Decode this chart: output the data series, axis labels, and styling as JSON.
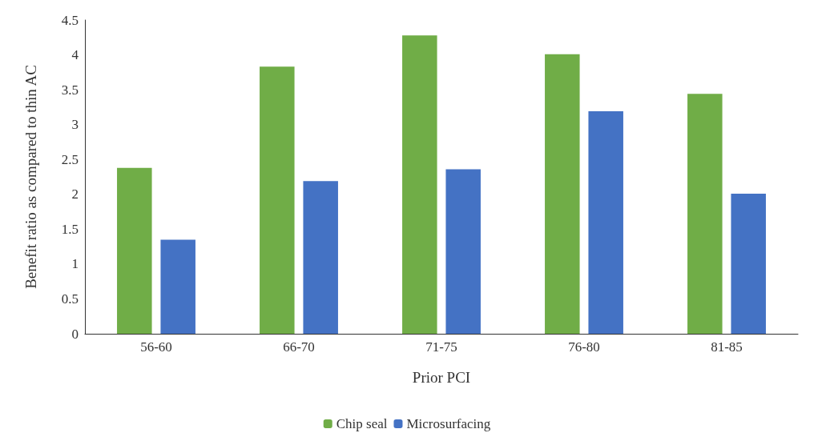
{
  "chart_data": {
    "type": "bar",
    "xlabel": "Prior PCI",
    "ylabel": "Benefit ratio as compared to thin AC",
    "categories": [
      "56-60",
      "66-70",
      "71-75",
      "76-80",
      "81-85"
    ],
    "series": [
      {
        "name": "Chip seal",
        "color": "#70ad47",
        "values": [
          2.38,
          3.83,
          4.28,
          4.01,
          3.44
        ]
      },
      {
        "name": "Microsurfacing",
        "color": "#4472c4",
        "values": [
          1.35,
          2.19,
          2.36,
          3.19,
          2.01
        ]
      }
    ],
    "ylim": [
      0,
      4.5
    ],
    "yticks": [
      0,
      0.5,
      1,
      1.5,
      2,
      2.5,
      3,
      3.5,
      4,
      4.5
    ],
    "grid": false,
    "legend": "bottom"
  }
}
